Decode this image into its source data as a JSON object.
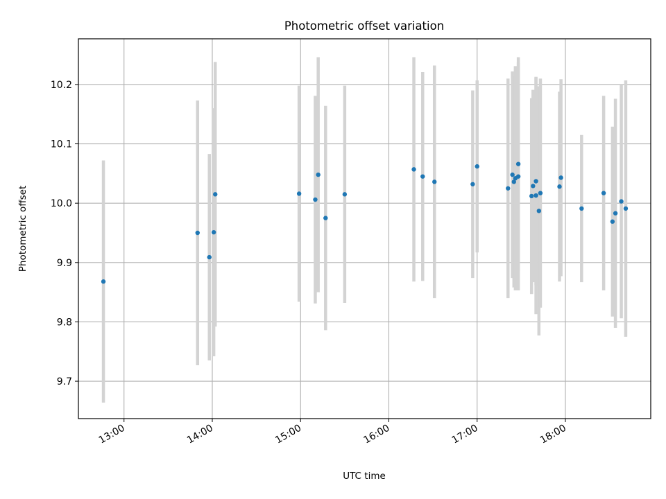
{
  "chart_data": {
    "type": "scatter",
    "title": "Photometric offset variation",
    "xlabel": "UTC time",
    "ylabel": "Photometric offset",
    "x_axis": "time",
    "xlim": [
      "12:29",
      "18:58"
    ],
    "ylim": [
      9.637,
      10.277
    ],
    "xticks": [
      "13:00",
      "14:00",
      "15:00",
      "16:00",
      "17:00",
      "18:00"
    ],
    "yticks": [
      9.7,
      9.8,
      9.9,
      10.0,
      10.1,
      10.2
    ],
    "ytick_labels": [
      "9.7",
      "9.8",
      "9.9",
      "10.0",
      "10.1",
      "10.2"
    ],
    "grid": true,
    "point_color": "#1f77b4",
    "errorbar_color": "#d3d3d3",
    "points": [
      {
        "x": "12:46",
        "y": 9.868,
        "err": 0.204
      },
      {
        "x": "13:50",
        "y": 9.95,
        "err": 0.223
      },
      {
        "x": "13:58",
        "y": 9.909,
        "err": 0.174
      },
      {
        "x": "14:01",
        "y": 9.951,
        "err": 0.209
      },
      {
        "x": "14:02",
        "y": 10.015,
        "err": 0.223
      },
      {
        "x": "14:59",
        "y": 10.016,
        "err": 0.182
      },
      {
        "x": "15:10",
        "y": 10.006,
        "err": 0.175
      },
      {
        "x": "15:12",
        "y": 10.048,
        "err": 0.198
      },
      {
        "x": "15:17",
        "y": 9.975,
        "err": 0.189
      },
      {
        "x": "15:30",
        "y": 10.015,
        "err": 0.183
      },
      {
        "x": "16:17",
        "y": 10.057,
        "err": 0.189
      },
      {
        "x": "16:23",
        "y": 10.045,
        "err": 0.176
      },
      {
        "x": "16:31",
        "y": 10.036,
        "err": 0.196
      },
      {
        "x": "16:57",
        "y": 10.032,
        "err": 0.158
      },
      {
        "x": "17:00",
        "y": 10.062,
        "err": 0.145
      },
      {
        "x": "17:21",
        "y": 10.025,
        "err": 0.185
      },
      {
        "x": "17:24",
        "y": 10.048,
        "err": 0.174
      },
      {
        "x": "17:25",
        "y": 10.036,
        "err": 0.178
      },
      {
        "x": "17:26",
        "y": 10.042,
        "err": 0.189
      },
      {
        "x": "17:28",
        "y": 10.045,
        "err": 0.192
      },
      {
        "x": "17:28",
        "y": 10.066,
        "err": 0.18
      },
      {
        "x": "17:37",
        "y": 10.012,
        "err": 0.165
      },
      {
        "x": "17:38",
        "y": 10.029,
        "err": 0.162
      },
      {
        "x": "17:40",
        "y": 10.013,
        "err": 0.2
      },
      {
        "x": "17:40",
        "y": 10.037,
        "err": 0.175
      },
      {
        "x": "17:42",
        "y": 9.987,
        "err": 0.21
      },
      {
        "x": "17:43",
        "y": 10.017,
        "err": 0.193
      },
      {
        "x": "17:56",
        "y": 10.028,
        "err": 0.16
      },
      {
        "x": "17:57",
        "y": 10.043,
        "err": 0.166
      },
      {
        "x": "18:11",
        "y": 9.991,
        "err": 0.124
      },
      {
        "x": "18:26",
        "y": 10.017,
        "err": 0.164
      },
      {
        "x": "18:32",
        "y": 9.969,
        "err": 0.16
      },
      {
        "x": "18:34",
        "y": 9.983,
        "err": 0.193
      },
      {
        "x": "18:38",
        "y": 10.003,
        "err": 0.197
      },
      {
        "x": "18:41",
        "y": 9.991,
        "err": 0.216
      }
    ]
  }
}
